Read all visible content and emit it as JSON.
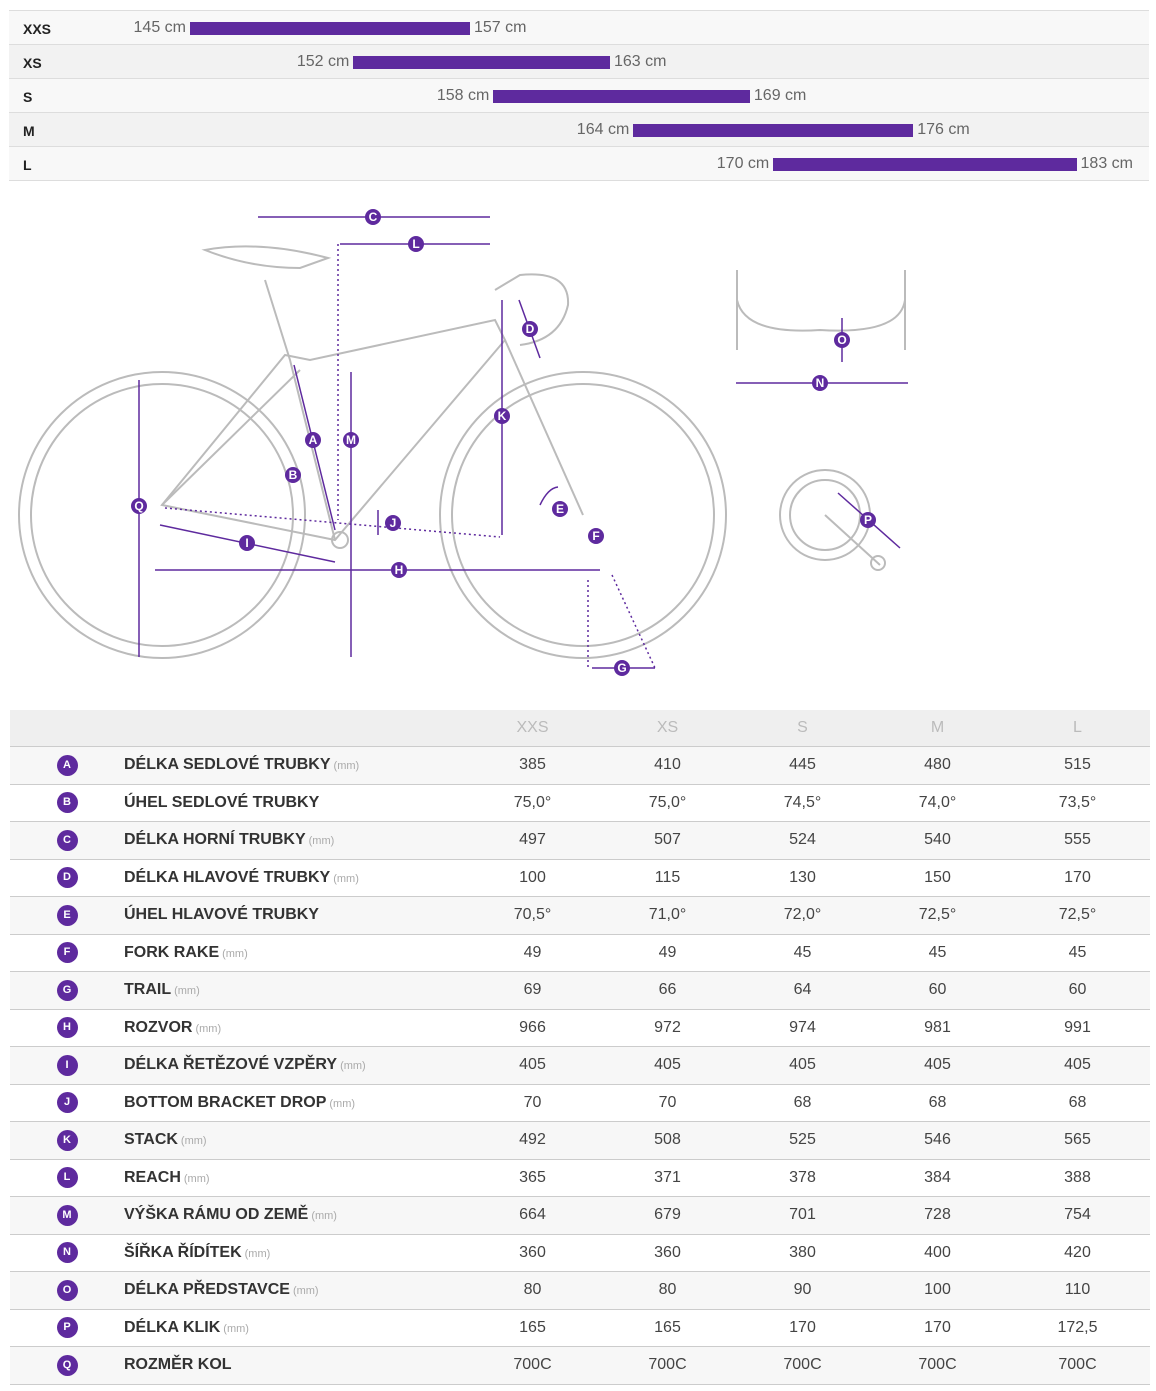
{
  "colors": {
    "accent": "#5e2a9e"
  },
  "rider_sizes": [
    {
      "size": "XXS",
      "min": 145,
      "max": 157,
      "min_label": "145 cm",
      "max_label": "157 cm"
    },
    {
      "size": "XS",
      "min": 152,
      "max": 163,
      "min_label": "152 cm",
      "max_label": "163 cm"
    },
    {
      "size": "S",
      "min": 158,
      "max": 169,
      "min_label": "158 cm",
      "max_label": "169 cm"
    },
    {
      "size": "M",
      "min": 164,
      "max": 176,
      "min_label": "164 cm",
      "max_label": "176 cm"
    },
    {
      "size": "L",
      "min": 170,
      "max": 183,
      "min_label": "170 cm",
      "max_label": "183 cm"
    }
  ],
  "table": {
    "columns": [
      "XXS",
      "XS",
      "S",
      "M",
      "L"
    ],
    "rows": [
      {
        "letter": "A",
        "name": "DÉLKA SEDLOVÉ TRUBKY",
        "unit": "(mm)",
        "values": [
          "385",
          "410",
          "445",
          "480",
          "515"
        ]
      },
      {
        "letter": "B",
        "name": "ÚHEL SEDLOVÉ TRUBKY",
        "unit": "",
        "values": [
          "75,0°",
          "75,0°",
          "74,5°",
          "74,0°",
          "73,5°"
        ]
      },
      {
        "letter": "C",
        "name": "DÉLKA HORNÍ TRUBKY",
        "unit": "(mm)",
        "values": [
          "497",
          "507",
          "524",
          "540",
          "555"
        ]
      },
      {
        "letter": "D",
        "name": "DÉLKA HLAVOVÉ TRUBKY",
        "unit": "(mm)",
        "values": [
          "100",
          "115",
          "130",
          "150",
          "170"
        ]
      },
      {
        "letter": "E",
        "name": "ÚHEL HLAVOVÉ TRUBKY",
        "unit": "",
        "values": [
          "70,5°",
          "71,0°",
          "72,0°",
          "72,5°",
          "72,5°"
        ]
      },
      {
        "letter": "F",
        "name": "FORK RAKE",
        "unit": "(mm)",
        "values": [
          "49",
          "49",
          "45",
          "45",
          "45"
        ]
      },
      {
        "letter": "G",
        "name": "TRAIL",
        "unit": "(mm)",
        "values": [
          "69",
          "66",
          "64",
          "60",
          "60"
        ]
      },
      {
        "letter": "H",
        "name": "ROZVOR",
        "unit": "(mm)",
        "values": [
          "966",
          "972",
          "974",
          "981",
          "991"
        ]
      },
      {
        "letter": "I",
        "name": "DÉLKA ŘETĚZOVÉ VZPĚRY",
        "unit": "(mm)",
        "values": [
          "405",
          "405",
          "405",
          "405",
          "405"
        ]
      },
      {
        "letter": "J",
        "name": "BOTTOM BRACKET DROP",
        "unit": "(mm)",
        "values": [
          "70",
          "70",
          "68",
          "68",
          "68"
        ]
      },
      {
        "letter": "K",
        "name": "STACK",
        "unit": "(mm)",
        "values": [
          "492",
          "508",
          "525",
          "546",
          "565"
        ]
      },
      {
        "letter": "L",
        "name": "REACH",
        "unit": "(mm)",
        "values": [
          "365",
          "371",
          "378",
          "384",
          "388"
        ]
      },
      {
        "letter": "M",
        "name": "VÝŠKA RÁMU OD ZEMĚ",
        "unit": "(mm)",
        "values": [
          "664",
          "679",
          "701",
          "728",
          "754"
        ]
      },
      {
        "letter": "N",
        "name": "ŠÍŘKA ŘÍDÍTEK",
        "unit": "(mm)",
        "values": [
          "360",
          "360",
          "380",
          "400",
          "420"
        ]
      },
      {
        "letter": "O",
        "name": "DÉLKA PŘEDSTAVCE",
        "unit": "(mm)",
        "values": [
          "80",
          "80",
          "90",
          "100",
          "110"
        ]
      },
      {
        "letter": "P",
        "name": "DÉLKA KLIK",
        "unit": "(mm)",
        "values": [
          "165",
          "165",
          "170",
          "170",
          "172,5"
        ]
      },
      {
        "letter": "Q",
        "name": "ROZMĚR KOL",
        "unit": "",
        "values": [
          "700C",
          "700C",
          "700C",
          "700C",
          "700C"
        ]
      }
    ]
  }
}
